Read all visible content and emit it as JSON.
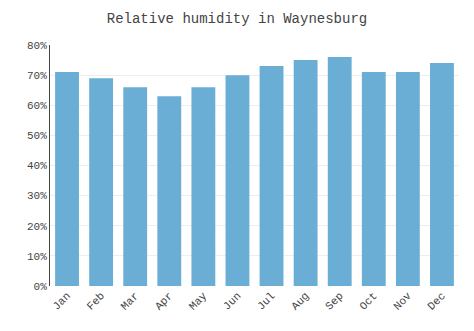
{
  "chart_data": {
    "type": "bar",
    "title": "Relative humidity in Waynesburg",
    "categories": [
      "Jan",
      "Feb",
      "Mar",
      "Apr",
      "May",
      "Jun",
      "Jul",
      "Aug",
      "Sep",
      "Oct",
      "Nov",
      "Dec"
    ],
    "values": [
      71,
      69,
      66,
      63,
      66,
      70,
      73,
      75,
      76,
      71,
      71,
      74
    ],
    "color": "#6aaed6",
    "ylim": [
      0,
      80
    ],
    "yticks": [
      {
        "value": 0,
        "label": "0%"
      },
      {
        "value": 10,
        "label": "10%"
      },
      {
        "value": 20,
        "label": "20%"
      },
      {
        "value": 30,
        "label": "30%"
      },
      {
        "value": 40,
        "label": "40%"
      },
      {
        "value": 50,
        "label": "50%"
      },
      {
        "value": 60,
        "label": "60%"
      },
      {
        "value": 70,
        "label": "70%"
      },
      {
        "value": 80,
        "label": "80%"
      }
    ],
    "grid": true
  }
}
